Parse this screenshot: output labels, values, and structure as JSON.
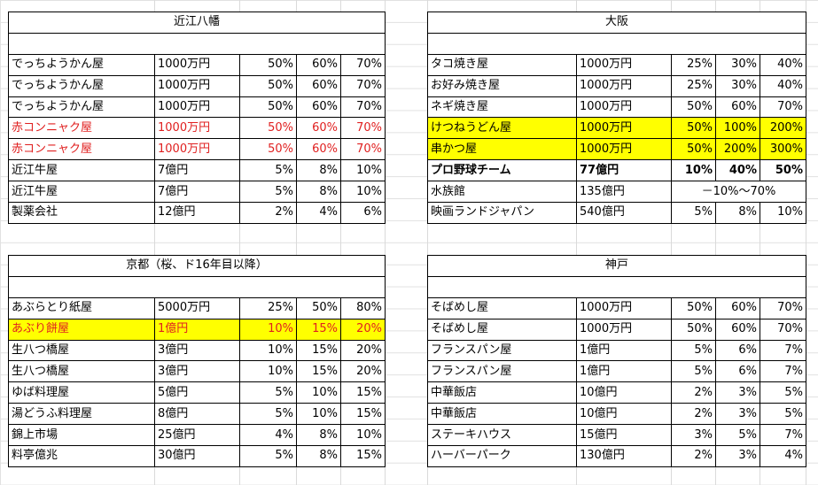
{
  "blocks": [
    {
      "title": "近江八幡",
      "rows": [
        {
          "name": "でっちようかん屋",
          "amount": "1000万円",
          "p1": "50%",
          "p2": "60%",
          "p3": "70%",
          "style": ""
        },
        {
          "name": "でっちようかん屋",
          "amount": "1000万円",
          "p1": "50%",
          "p2": "60%",
          "p3": "70%",
          "style": ""
        },
        {
          "name": "でっちようかん屋",
          "amount": "1000万円",
          "p1": "50%",
          "p2": "60%",
          "p3": "70%",
          "style": ""
        },
        {
          "name": "赤コンニャク屋",
          "amount": "1000万円",
          "p1": "50%",
          "p2": "60%",
          "p3": "70%",
          "style": "red"
        },
        {
          "name": "赤コンニャク屋",
          "amount": "1000万円",
          "p1": "50%",
          "p2": "60%",
          "p3": "70%",
          "style": "red"
        },
        {
          "name": "近江牛屋",
          "amount": "7億円",
          "p1": "5%",
          "p2": "8%",
          "p3": "10%",
          "style": ""
        },
        {
          "name": "近江牛屋",
          "amount": "7億円",
          "p1": "5%",
          "p2": "8%",
          "p3": "10%",
          "style": ""
        },
        {
          "name": "製薬会社",
          "amount": "12億円",
          "p1": "2%",
          "p2": "4%",
          "p3": "6%",
          "style": ""
        }
      ]
    },
    {
      "title": "大阪",
      "rows": [
        {
          "name": "タコ焼き屋",
          "amount": "1000万円",
          "p1": "25%",
          "p2": "30%",
          "p3": "40%",
          "style": ""
        },
        {
          "name": "お好み焼き屋",
          "amount": "1000万円",
          "p1": "25%",
          "p2": "30%",
          "p3": "40%",
          "style": ""
        },
        {
          "name": "ネギ焼き屋",
          "amount": "1000万円",
          "p1": "50%",
          "p2": "60%",
          "p3": "70%",
          "style": ""
        },
        {
          "name": "けつねうどん屋",
          "amount": "1000万円",
          "p1": "50%",
          "p2": "100%",
          "p3": "200%",
          "style": "yellow"
        },
        {
          "name": "串かつ屋",
          "amount": "1000万円",
          "p1": "50%",
          "p2": "200%",
          "p3": "300%",
          "style": "yellow"
        },
        {
          "name": "プロ野球チーム",
          "amount": "77億円",
          "p1": "10%",
          "p2": "40%",
          "p3": "50%",
          "style": "bold"
        },
        {
          "name": "水族館",
          "amount": "135億円",
          "range": "－10%～70%",
          "style": ""
        },
        {
          "name": "映画ランドジャパン",
          "amount": "540億円",
          "p1": "5%",
          "p2": "8%",
          "p3": "10%",
          "style": ""
        }
      ]
    },
    {
      "title": "京都（桜、ド16年目以降）",
      "rows": [
        {
          "name": "あぶらとり紙屋",
          "amount": "5000万円",
          "p1": "25%",
          "p2": "50%",
          "p3": "80%",
          "style": ""
        },
        {
          "name": "あぶり餅屋",
          "amount": "1億円",
          "p1": "10%",
          "p2": "15%",
          "p3": "20%",
          "style": "yellow red"
        },
        {
          "name": "生八つ橋屋",
          "amount": "3億円",
          "p1": "10%",
          "p2": "15%",
          "p3": "20%",
          "style": ""
        },
        {
          "name": "生八つ橋屋",
          "amount": "3億円",
          "p1": "10%",
          "p2": "15%",
          "p3": "20%",
          "style": ""
        },
        {
          "name": "ゆば料理屋",
          "amount": "5億円",
          "p1": "5%",
          "p2": "10%",
          "p3": "15%",
          "style": ""
        },
        {
          "name": "湯どうふ料理屋",
          "amount": "8億円",
          "p1": "5%",
          "p2": "10%",
          "p3": "15%",
          "style": ""
        },
        {
          "name": "錦上市場",
          "amount": "25億円",
          "p1": "4%",
          "p2": "8%",
          "p3": "10%",
          "style": ""
        },
        {
          "name": "料亭億兆",
          "amount": "30億円",
          "p1": "5%",
          "p2": "8%",
          "p3": "15%",
          "style": ""
        }
      ]
    },
    {
      "title": "神戸",
      "rows": [
        {
          "name": "そばめし屋",
          "amount": "1000万円",
          "p1": "50%",
          "p2": "60%",
          "p3": "70%",
          "style": ""
        },
        {
          "name": "そばめし屋",
          "amount": "1000万円",
          "p1": "50%",
          "p2": "60%",
          "p3": "70%",
          "style": ""
        },
        {
          "name": "フランスパン屋",
          "amount": "1億円",
          "p1": "5%",
          "p2": "6%",
          "p3": "7%",
          "style": ""
        },
        {
          "name": "フランスパン屋",
          "amount": "1億円",
          "p1": "5%",
          "p2": "6%",
          "p3": "7%",
          "style": ""
        },
        {
          "name": "中華飯店",
          "amount": "10億円",
          "p1": "2%",
          "p2": "3%",
          "p3": "5%",
          "style": ""
        },
        {
          "name": "中華飯店",
          "amount": "10億円",
          "p1": "2%",
          "p2": "3%",
          "p3": "5%",
          "style": ""
        },
        {
          "name": "ステーキハウス",
          "amount": "15億円",
          "p1": "3%",
          "p2": "5%",
          "p3": "7%",
          "style": ""
        },
        {
          "name": "ハーバーパーク",
          "amount": "130億円",
          "p1": "2%",
          "p2": "3%",
          "p3": "4%",
          "style": ""
        }
      ]
    }
  ]
}
